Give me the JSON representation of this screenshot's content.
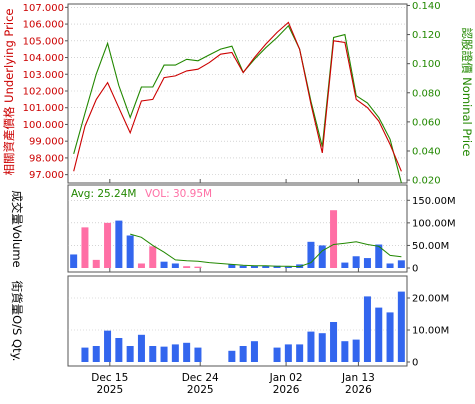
{
  "colors": {
    "underlying_axis": "#cc0000",
    "nominal_axis": "#228800",
    "underlying_line": "#cc0000",
    "nominal_line": "#228800",
    "volume_up_bar": "#ff6fa5",
    "volume_down_bar": "#3366ee",
    "avg_line": "#228800",
    "warrant_bar": "#3366ee",
    "avg_label": "#228800",
    "vol_label": "#ff6fa5",
    "grid": "#bbbbbb",
    "frame": "#555555",
    "text": "#000000"
  },
  "chart_data": [
    {
      "type": "line",
      "panel": "price",
      "ylabel_left": "相關資產價格 Underlying Price",
      "ylabel_right": "認股證價 Nominal Price",
      "ylim_left": [
        96.5,
        107.2
      ],
      "ylim_right": [
        0.018,
        0.141
      ],
      "yticks_left": [
        "97.000",
        "98.000",
        "99.000",
        "100.000",
        "101.000",
        "102.000",
        "103.000",
        "104.000",
        "105.000",
        "106.000",
        "107.000"
      ],
      "yticks_right": [
        "0.020",
        "0.040",
        "0.060",
        "0.080",
        "0.100",
        "0.120",
        "0.140"
      ],
      "grid": true,
      "series": [
        {
          "axis": "left",
          "values": [
            97.2,
            99.9,
            101.5,
            102.5,
            101.0,
            99.5,
            101.4,
            101.5,
            102.8,
            102.9,
            103.2,
            103.3,
            103.7,
            104.2,
            104.3,
            103.1,
            104.0,
            104.8,
            105.5,
            106.1,
            104.5,
            101.2,
            98.3,
            105.0,
            104.9,
            101.5,
            101.0,
            100.2,
            98.8,
            97.2
          ]
        },
        {
          "axis": "right",
          "values": [
            0.038,
            0.066,
            0.093,
            0.114,
            0.085,
            0.063,
            0.084,
            0.084,
            0.099,
            0.099,
            0.103,
            0.102,
            0.106,
            0.11,
            0.112,
            0.094,
            0.103,
            0.111,
            0.118,
            0.126,
            0.11,
            0.074,
            0.043,
            0.118,
            0.12,
            0.078,
            0.073,
            0.063,
            0.048,
            0.018
          ]
        }
      ]
    },
    {
      "type": "bar",
      "panel": "volume",
      "ylabel_left": "成交量Volume",
      "ylim": [
        0,
        175
      ],
      "yticks_right": [
        "0",
        "50.00M",
        "100.00M",
        "150.00M"
      ],
      "avg_label": "Avg: 25.24M",
      "vol_label": "VOL: 30.95M",
      "grid": true,
      "values": [
        30,
        90,
        18,
        100,
        105,
        72,
        10,
        48,
        14,
        10,
        4,
        3,
        0,
        0,
        8,
        5,
        5,
        5,
        5,
        3,
        8,
        58,
        50,
        128,
        12,
        26,
        22,
        52,
        10,
        17
      ],
      "bar_colors": [
        "down",
        "up",
        "up",
        "up",
        "down",
        "down",
        "up",
        "up",
        "down",
        "down",
        "up",
        "up",
        "none",
        "none",
        "down",
        "down",
        "down",
        "down",
        "down",
        "down",
        "down",
        "down",
        "down",
        "up",
        "down",
        "down",
        "down",
        "down",
        "down",
        "down"
      ],
      "avg_values": [
        null,
        null,
        null,
        null,
        null,
        75,
        68,
        50,
        35,
        18,
        16,
        15,
        12,
        10,
        8,
        6,
        5,
        5,
        4,
        4,
        3,
        12,
        38,
        52,
        55,
        58,
        52,
        48,
        28,
        25
      ]
    },
    {
      "type": "bar",
      "panel": "warrant",
      "ylabel_left": "街貨量O/S Qty.",
      "ylim": [
        0,
        25
      ],
      "yticks_right": [
        "0",
        "10.00M",
        "20.00M"
      ],
      "grid": true,
      "values": [
        null,
        4.5,
        5.0,
        9.8,
        7.5,
        5.0,
        8.5,
        5.0,
        4.8,
        5.5,
        6.0,
        4.5,
        null,
        null,
        3.5,
        5.0,
        6.5,
        null,
        4.5,
        5.5,
        5.5,
        9.5,
        9.0,
        12.5,
        6.5,
        7.0,
        20.5,
        17.0,
        15.5,
        22.0
      ],
      "xticks": [
        {
          "index": 3.2,
          "day": "Dec 15",
          "year": "2025"
        },
        {
          "index": 11.2,
          "day": "Dec 24",
          "year": "2025"
        },
        {
          "index": 18.8,
          "day": "Jan 02",
          "year": "2026"
        },
        {
          "index": 25.2,
          "day": "Jan 13",
          "year": "2026"
        }
      ]
    }
  ]
}
